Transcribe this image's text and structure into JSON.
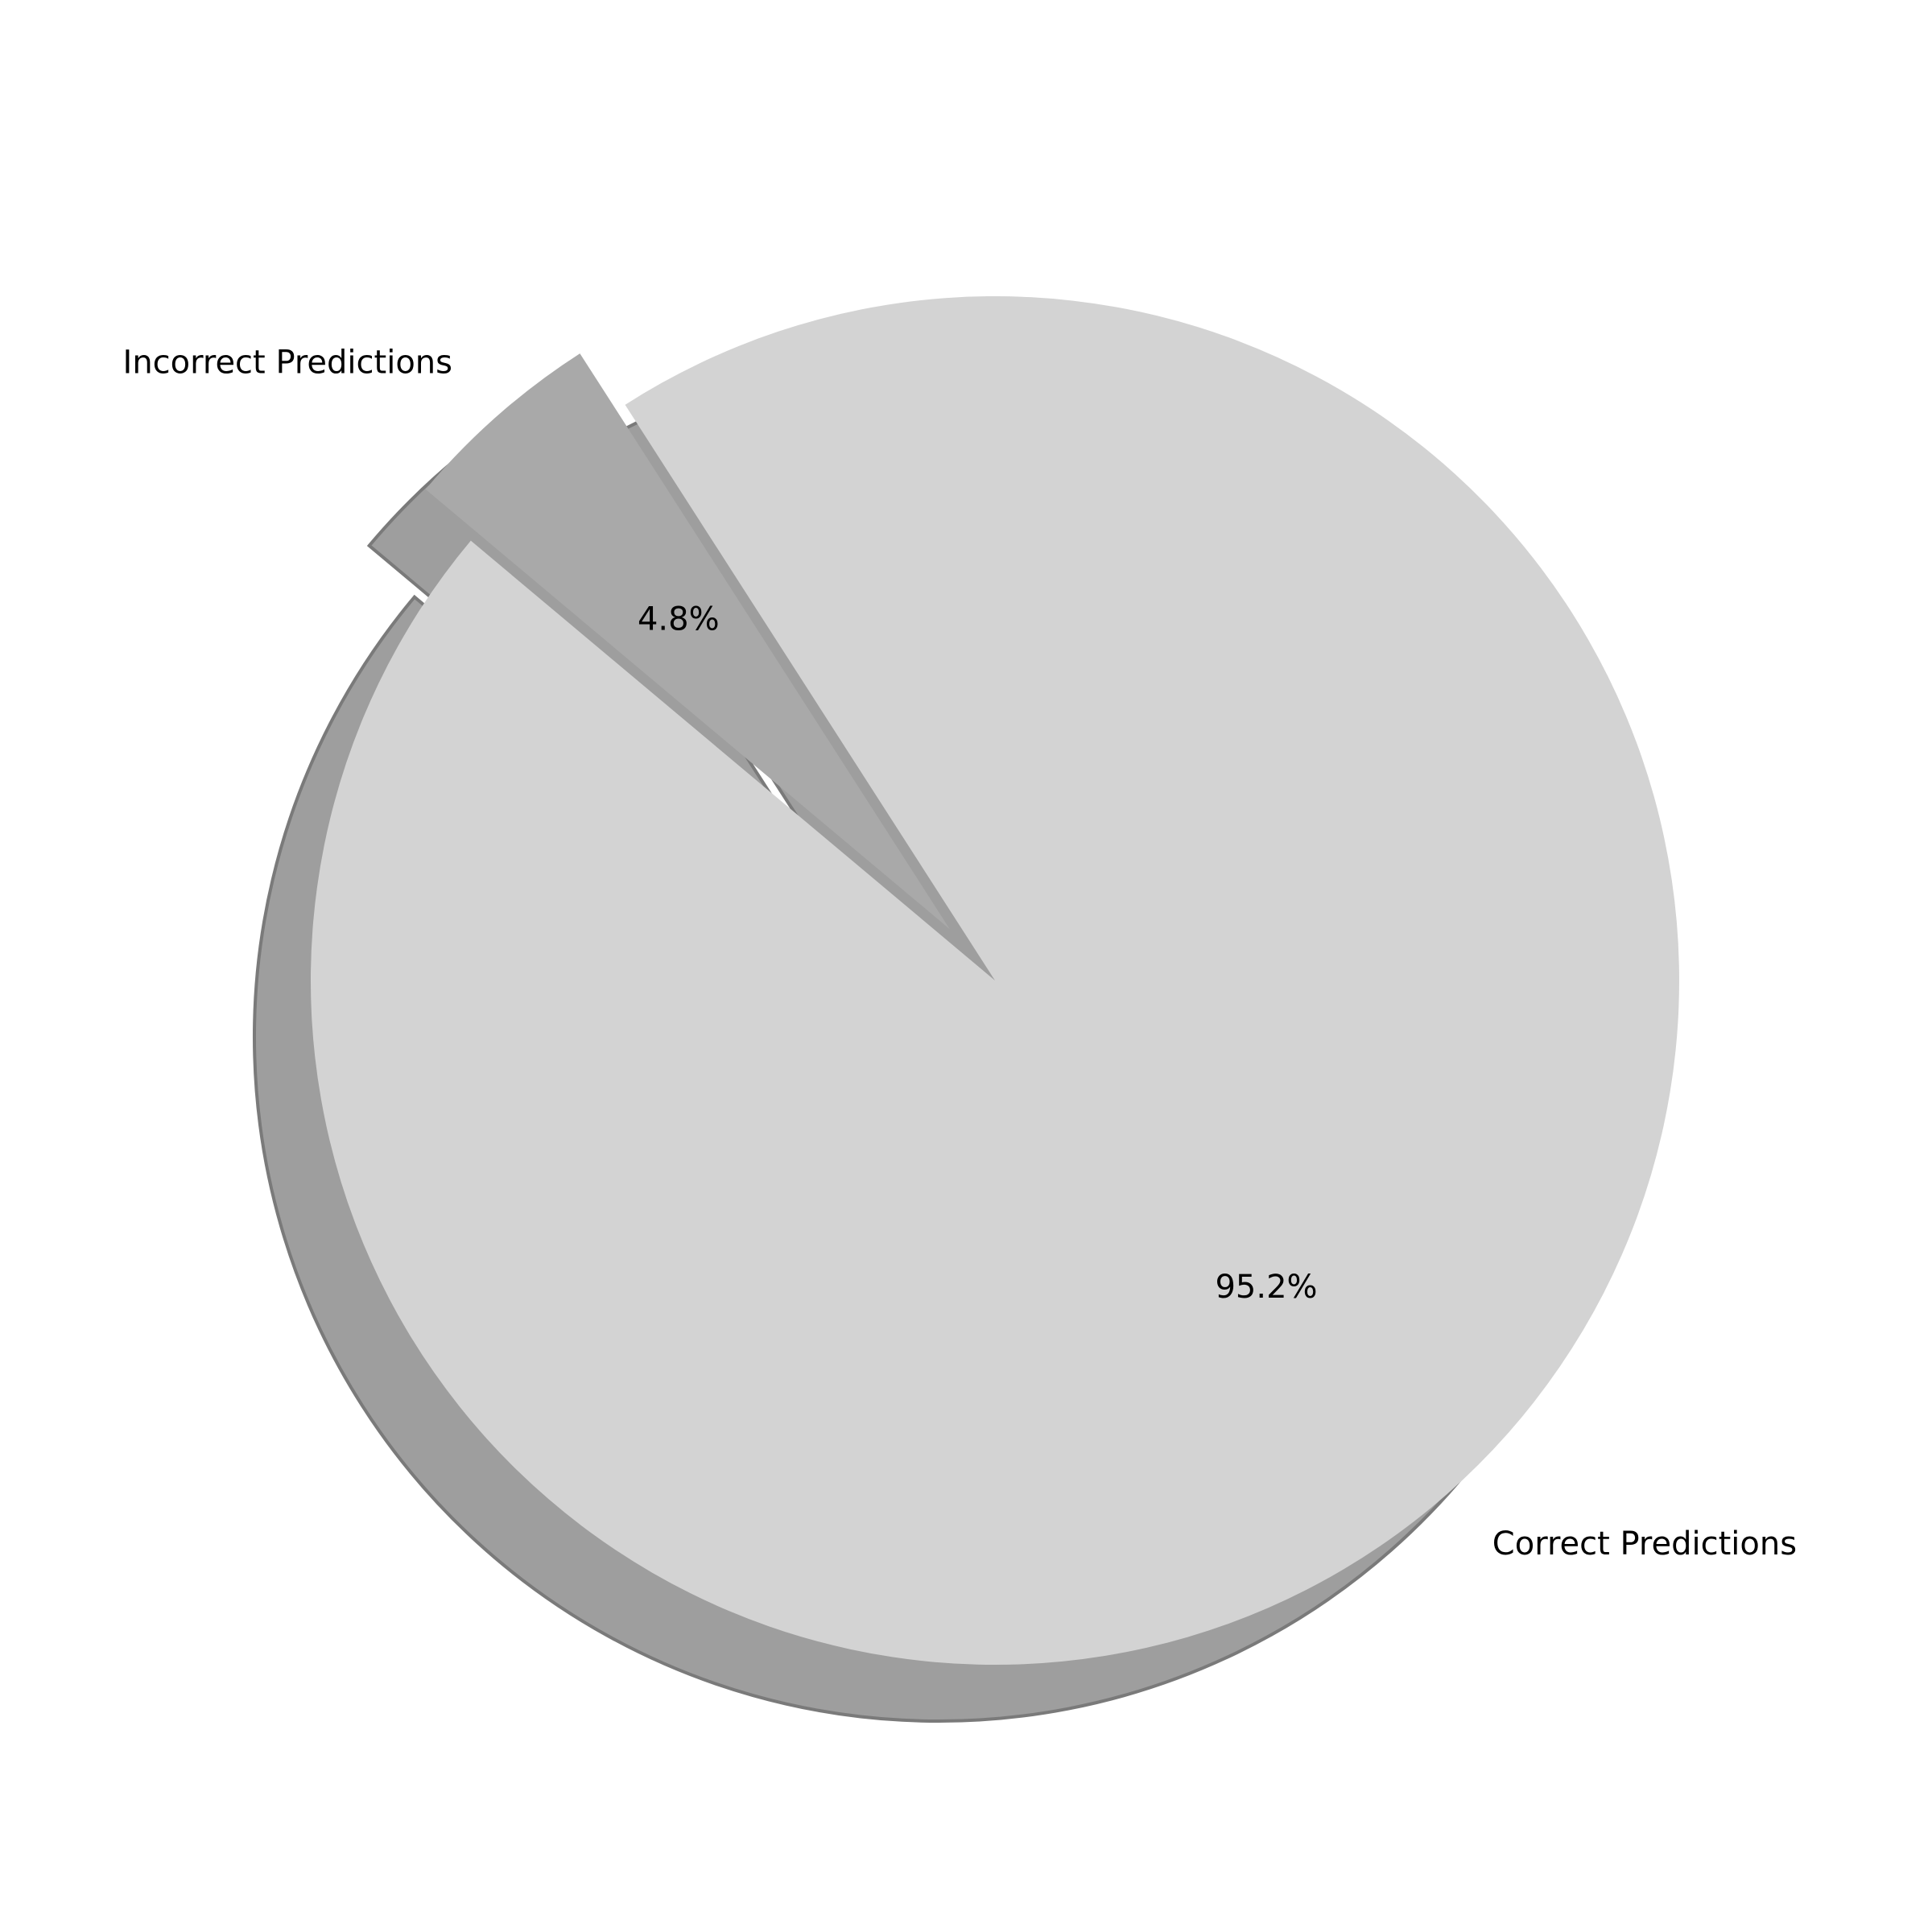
{
  "chart_data": {
    "type": "pie",
    "title": "",
    "categories": [
      "Correct Predictions",
      "Incorrect Predictions"
    ],
    "values": [
      95.2,
      4.8
    ],
    "percent_labels": [
      "95.2%",
      "4.8%"
    ],
    "colors": [
      "#d3d3d3",
      "#a9a9a9"
    ],
    "exploded": [
      false,
      true
    ],
    "shadow": true,
    "start_angle_deg": 140
  }
}
